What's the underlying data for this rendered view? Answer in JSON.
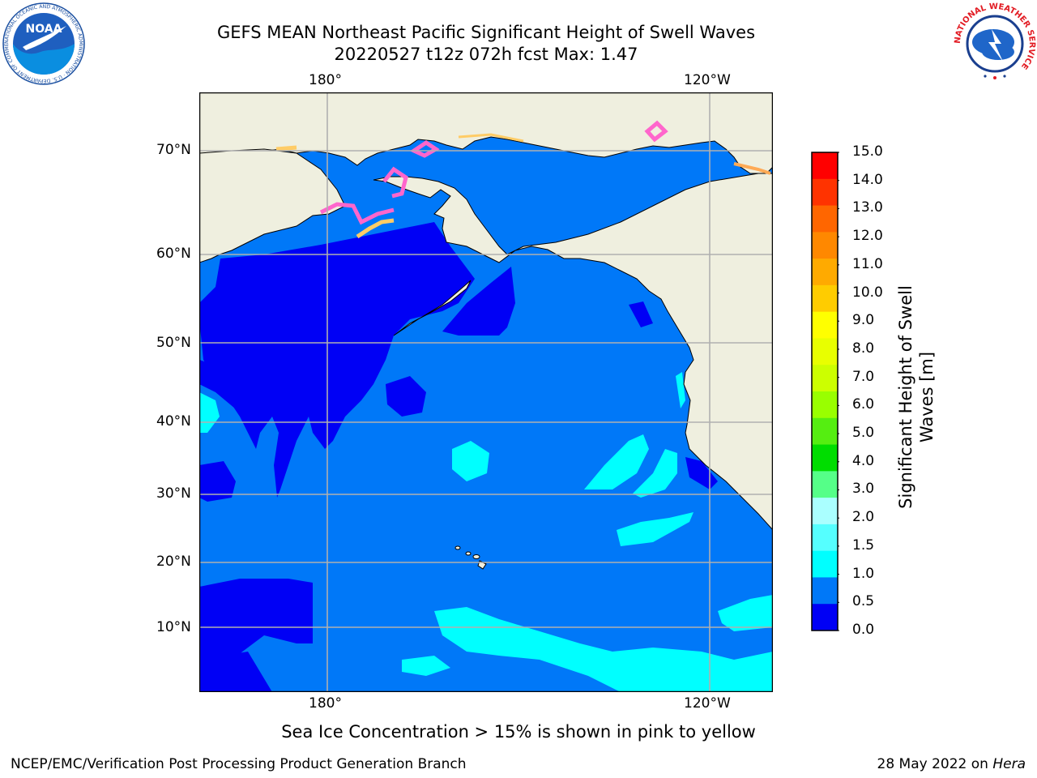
{
  "title": {
    "line1": "GEFS MEAN Northeast Pacific Significant Height of Swell Waves",
    "line2": "20220527 t12z 072h fcst   Max: 1.47"
  },
  "map": {
    "top_lon_labels": [
      "180°",
      "120°W"
    ],
    "bottom_lon_labels": [
      "180°",
      "120°W"
    ],
    "lat_labels": [
      "70°N",
      "60°N",
      "50°N",
      "40°N",
      "30°N",
      "20°N",
      "10°N"
    ],
    "colors": {
      "ocean_0_0_5": "#0000f5",
      "ocean_0_5_1_0": "#0078f8",
      "ocean_1_0_1_5": "#00ffff",
      "land": "#efefdf",
      "grid": "#b0b0b0",
      "sea_ice": "#ff66cc"
    }
  },
  "colorbar": {
    "label_line1": "Significant Height of Swell",
    "label_line2": "Waves [m]",
    "ticks": [
      "15.0",
      "14.0",
      "13.0",
      "12.0",
      "11.0",
      "10.0",
      "9.0",
      "8.0",
      "7.0",
      "6.0",
      "5.0",
      "4.0",
      "3.0",
      "2.0",
      "1.5",
      "1.0",
      "0.5",
      "0.0"
    ],
    "colors": [
      "#ff0000",
      "#ff3300",
      "#ff6600",
      "#ff8800",
      "#ffaa00",
      "#ffcc00",
      "#ffff00",
      "#e8ff00",
      "#ccff00",
      "#99ff00",
      "#55ee11",
      "#00dd00",
      "#55ff88",
      "#aaffff",
      "#55ffff",
      "#00ffff",
      "#0078f8",
      "#0000f5"
    ]
  },
  "caption": "Sea Ice Concentration > 15% is shown in pink to yellow",
  "footer": {
    "left": "NCEP/EMC/Verification Post Processing Product Generation Branch",
    "right_prefix": "28 May 2022 on ",
    "right_host": "Hera"
  },
  "logos": {
    "noaa": "NOAA",
    "noaa_ring": "NATIONAL OCEANIC AND ATMOSPHERIC ADMINISTRATION · U.S. DEPARTMENT OF COMMERCE",
    "nws_ring": "NATIONAL WEATHER SERVICE"
  }
}
